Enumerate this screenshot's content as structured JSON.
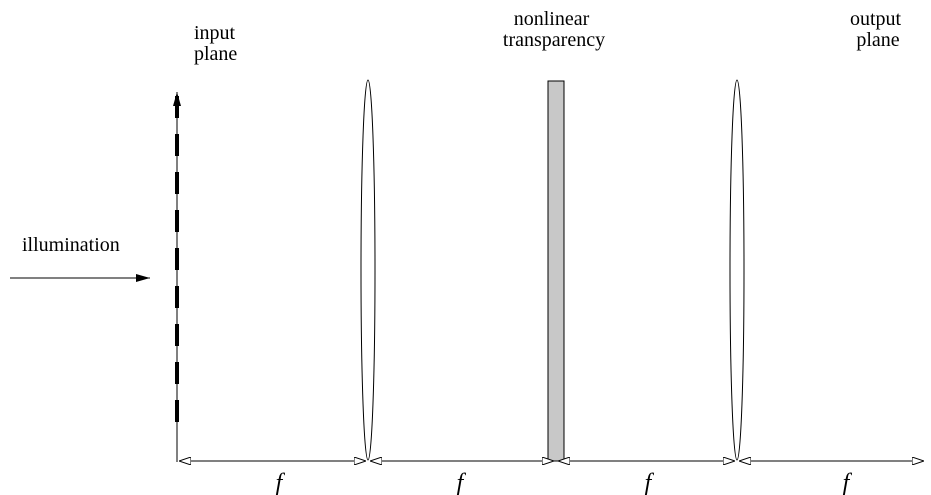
{
  "labels": {
    "input_plane": [
      "input",
      "plane"
    ],
    "nonlinear_transparency": [
      "nonlinear",
      "transparency"
    ],
    "output_plane": [
      "output",
      "plane"
    ],
    "illumination": "illumination"
  },
  "distance_labels": [
    "f",
    "f",
    "f",
    "f"
  ],
  "colors": {
    "ink": "#000000",
    "transparency_fill": "#c8c8c8"
  }
}
